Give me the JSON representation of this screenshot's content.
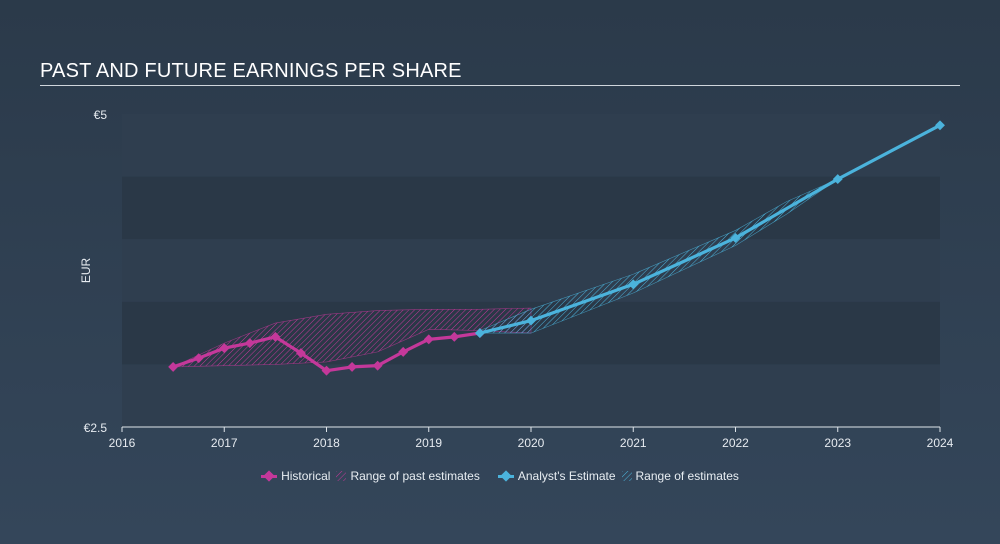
{
  "title": "PAST AND FUTURE EARNINGS PER SHARE",
  "legend": {
    "historical": "Historical",
    "past_range": "Range of past estimates",
    "analyst": "Analyst's Estimate",
    "future_range": "Range of estimates"
  },
  "colors": {
    "historical": "#c4389a",
    "estimate": "#4bb3dc",
    "axis_text": "#e6ebf0",
    "band_a": "#2f3e4f",
    "band_b": "#2a3847"
  },
  "chart_data": {
    "type": "line",
    "ylabel": "EUR",
    "xlim": [
      2016,
      2024.0
    ],
    "ylim": [
      2.5,
      5.0
    ],
    "y_tick_labels": [
      {
        "value": 5.0,
        "label": "€5"
      },
      {
        "value": 2.5,
        "label": "€2.5"
      }
    ],
    "x_tick_labels": [
      "2016",
      "2017",
      "2018",
      "2019",
      "2020",
      "2021",
      "2022",
      "2023",
      "2024"
    ],
    "grid": false,
    "legend_position": "bottom",
    "series": [
      {
        "name": "Historical",
        "x": [
          2016.5,
          2016.75,
          2017.0,
          2017.25,
          2017.5,
          2017.75,
          2018.0,
          2018.25,
          2018.5,
          2018.75,
          2019.0,
          2019.25,
          2019.5
        ],
        "y": [
          2.98,
          3.05,
          3.13,
          3.17,
          3.22,
          3.09,
          2.95,
          2.98,
          2.99,
          3.1,
          3.2,
          3.22,
          3.25
        ]
      },
      {
        "name": "Analyst's Estimate",
        "x": [
          2019.5,
          2020.0,
          2021.0,
          2022.0,
          2023.0,
          2024.0
        ],
        "y": [
          3.25,
          3.35,
          3.64,
          4.01,
          4.48,
          4.91
        ]
      }
    ],
    "ranges": [
      {
        "name": "Range of past estimates",
        "x": [
          2016.5,
          2017.0,
          2017.5,
          2018.0,
          2018.5,
          2019.0,
          2019.5,
          2020.0
        ],
        "high": [
          2.98,
          3.17,
          3.33,
          3.4,
          3.43,
          3.44,
          3.44,
          3.45
        ],
        "low": [
          2.98,
          2.99,
          3.0,
          3.02,
          3.1,
          3.28,
          3.27,
          3.25
        ]
      },
      {
        "name": "Range of estimates",
        "x": [
          2019.5,
          2020.0,
          2021.0,
          2022.0,
          2022.5,
          2023.0
        ],
        "high": [
          3.27,
          3.44,
          3.72,
          4.07,
          4.3,
          4.48
        ],
        "low": [
          3.25,
          3.25,
          3.57,
          3.95,
          4.2,
          4.48
        ]
      }
    ]
  }
}
